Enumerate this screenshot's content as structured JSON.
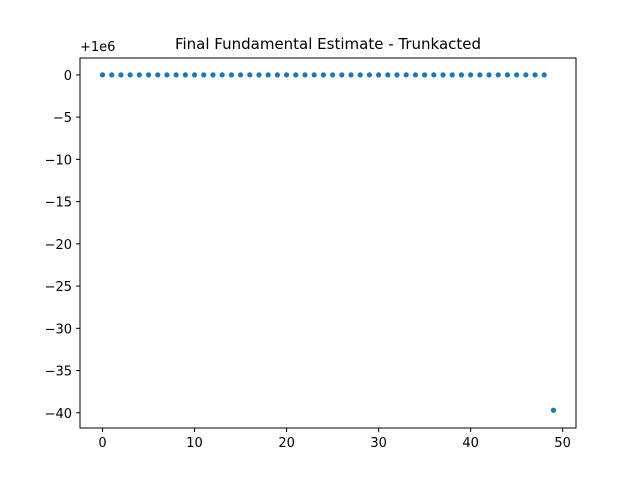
{
  "chart_data": {
    "type": "scatter",
    "title": "Final Fundamental Estimate - Trunkacted",
    "xlabel": "",
    "ylabel": "",
    "y_offset_label": "+1e6",
    "y_offset": 1000000,
    "xlim": [
      -2.45,
      51.45
    ],
    "ylim": [
      -41.8,
      2.0
    ],
    "xticks": [
      0,
      10,
      20,
      30,
      40,
      50
    ],
    "yticks": [
      0,
      -5,
      -10,
      -15,
      -20,
      -25,
      -30,
      -35,
      -40
    ],
    "grid": false,
    "marker_color": "#1f77b4",
    "points": {
      "x": [
        0,
        1,
        2,
        3,
        4,
        5,
        6,
        7,
        8,
        9,
        10,
        11,
        12,
        13,
        14,
        15,
        16,
        17,
        18,
        19,
        20,
        21,
        22,
        23,
        24,
        25,
        26,
        27,
        28,
        29,
        30,
        31,
        32,
        33,
        34,
        35,
        36,
        37,
        38,
        39,
        40,
        41,
        42,
        43,
        44,
        45,
        46,
        47,
        48,
        49
      ],
      "y": [
        1000000,
        1000000,
        1000000,
        1000000,
        1000000,
        1000000,
        1000000,
        1000000,
        1000000,
        1000000,
        1000000,
        1000000,
        1000000,
        1000000,
        1000000,
        1000000,
        1000000,
        1000000,
        1000000,
        1000000,
        1000000,
        1000000,
        1000000,
        1000000,
        1000000,
        1000000,
        1000000,
        1000000,
        1000000,
        1000000,
        1000000,
        1000000,
        1000000,
        1000000,
        1000000,
        1000000,
        1000000,
        1000000,
        1000000,
        1000000,
        1000000,
        1000000,
        1000000,
        1000000,
        1000000,
        1000000,
        1000000,
        1000000,
        1000000,
        999960.3
      ]
    }
  }
}
